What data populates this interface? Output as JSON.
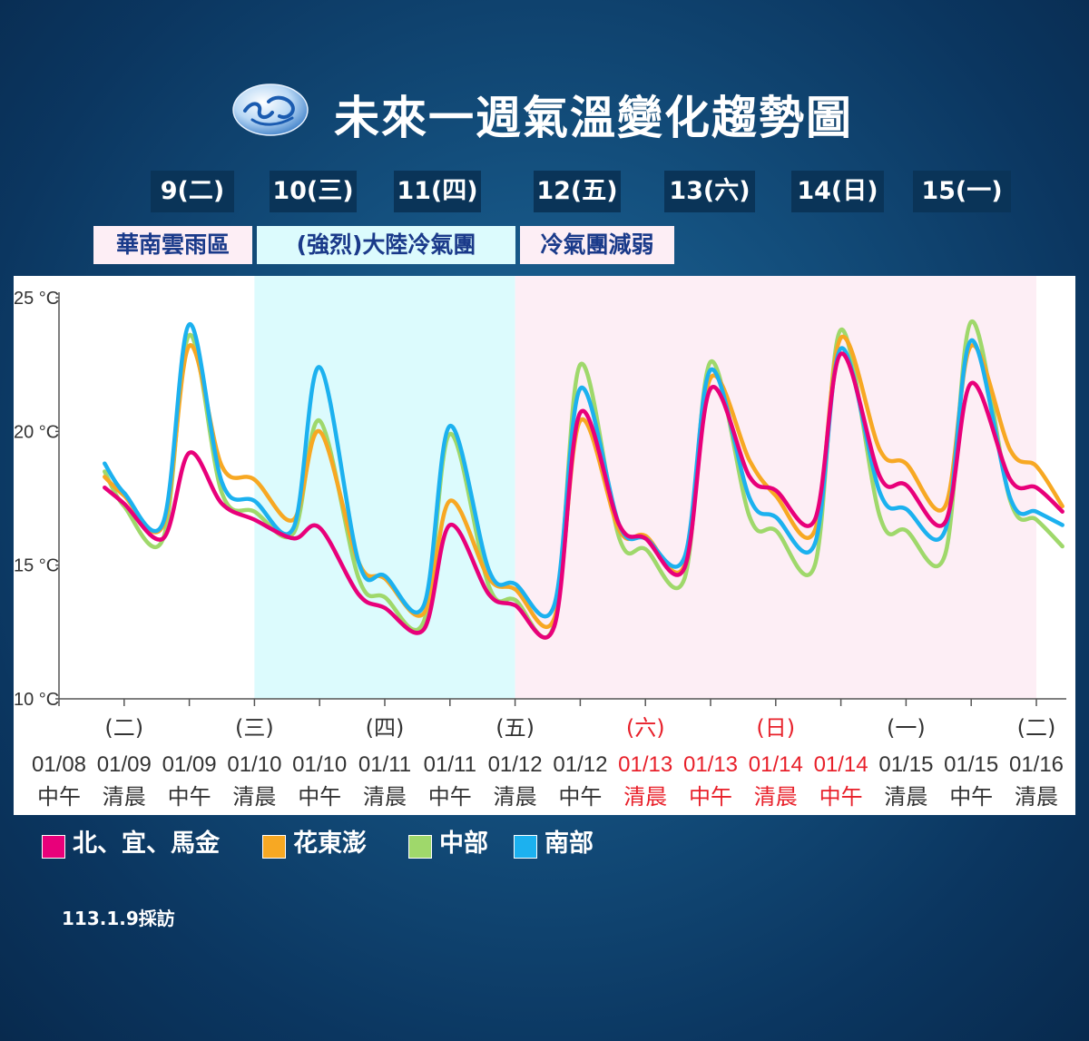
{
  "title": "未來一週氣溫變化趨勢圖",
  "days": [
    "9(二)",
    "10(三)",
    "11(四)",
    "12(五)",
    "13(六)",
    "14(日)",
    "15(一)"
  ],
  "periods": [
    "華南雲雨區",
    "(強烈)大陸冷氣團",
    "冷氣團減弱"
  ],
  "note": "113.1.9採訪",
  "colors": {
    "north": "#e8007a",
    "east": "#f7a823",
    "central": "#9fd86b",
    "south": "#1cb1ef",
    "holiday": "#e8202a",
    "band_cyan": "#dcfbfd",
    "band_pink": "#fdeef5"
  },
  "chart_data": {
    "type": "line",
    "title": "",
    "xlabel": "",
    "ylabel": "",
    "ylim": [
      10,
      25
    ],
    "y_ticks": [
      "25 °C",
      "20 °C",
      "15 °C",
      "10 °C"
    ],
    "x_ticks": [
      {
        "day": "",
        "date": "01/08",
        "time": "中午",
        "holiday": false
      },
      {
        "day": "(二)",
        "date": "01/09",
        "time": "清晨",
        "holiday": false
      },
      {
        "day": "",
        "date": "01/09",
        "time": "中午",
        "holiday": false
      },
      {
        "day": "(三)",
        "date": "01/10",
        "time": "清晨",
        "holiday": false
      },
      {
        "day": "",
        "date": "01/10",
        "time": "中午",
        "holiday": false
      },
      {
        "day": "(四)",
        "date": "01/11",
        "time": "清晨",
        "holiday": false
      },
      {
        "day": "",
        "date": "01/11",
        "time": "中午",
        "holiday": false
      },
      {
        "day": "(五)",
        "date": "01/12",
        "time": "清晨",
        "holiday": false
      },
      {
        "day": "",
        "date": "01/12",
        "time": "中午",
        "holiday": false
      },
      {
        "day": "(六)",
        "date": "01/13",
        "time": "清晨",
        "holiday": true
      },
      {
        "day": "",
        "date": "01/13",
        "time": "中午",
        "holiday": true
      },
      {
        "day": "(日)",
        "date": "01/14",
        "time": "清晨",
        "holiday": true
      },
      {
        "day": "",
        "date": "01/14",
        "time": "中午",
        "holiday": true
      },
      {
        "day": "(一)",
        "date": "01/15",
        "time": "清晨",
        "holiday": false
      },
      {
        "day": "",
        "date": "01/15",
        "time": "中午",
        "holiday": false
      },
      {
        "day": "(二)",
        "date": "01/16",
        "time": "清晨",
        "holiday": false
      }
    ],
    "bands": [
      {
        "from": 3,
        "to": 7,
        "color": "band_cyan"
      },
      {
        "from": 7,
        "to": 15,
        "color": "band_pink"
      }
    ],
    "x": [
      0.7,
      1.0,
      1.6,
      2.0,
      2.5,
      3.0,
      3.6,
      4.0,
      4.6,
      5.0,
      5.6,
      6.0,
      6.6,
      7.0,
      7.6,
      8.0,
      8.6,
      9.0,
      9.6,
      10.0,
      10.6,
      11.0,
      11.6,
      12.0,
      12.6,
      13.0,
      13.6,
      14.0,
      14.6,
      15.0,
      15.4
    ],
    "series": [
      {
        "name": "北、宜、馬金",
        "color": "north",
        "values": [
          17.9,
          17.3,
          16.0,
          19.2,
          17.3,
          16.7,
          16.0,
          16.4,
          13.9,
          13.4,
          12.6,
          16.5,
          13.9,
          13.5,
          12.7,
          20.7,
          16.5,
          16.0,
          14.9,
          21.6,
          18.3,
          17.8,
          16.7,
          22.9,
          18.3,
          18.0,
          16.6,
          21.8,
          18.2,
          17.9,
          17.0
        ]
      },
      {
        "name": "花東澎",
        "color": "east",
        "values": [
          18.3,
          17.6,
          16.5,
          23.2,
          18.7,
          18.2,
          16.7,
          20.0,
          15.1,
          14.5,
          13.2,
          17.4,
          14.5,
          14.1,
          13.0,
          20.4,
          16.3,
          16.1,
          15.0,
          22.0,
          18.9,
          17.6,
          16.3,
          23.5,
          19.3,
          18.8,
          17.2,
          23.2,
          19.3,
          18.7,
          17.2
        ]
      },
      {
        "name": "中部",
        "color": "central",
        "values": [
          18.5,
          17.2,
          16.0,
          23.6,
          17.7,
          17.0,
          16.2,
          20.4,
          14.5,
          13.8,
          12.9,
          19.9,
          14.2,
          13.7,
          12.8,
          22.5,
          16.0,
          15.6,
          14.5,
          22.6,
          16.8,
          16.3,
          15.0,
          23.8,
          16.8,
          16.3,
          15.4,
          24.1,
          17.4,
          16.7,
          15.7
        ]
      },
      {
        "name": "南部",
        "color": "south",
        "values": [
          18.8,
          17.7,
          16.6,
          24.0,
          18.1,
          17.4,
          16.4,
          22.4,
          15.1,
          14.6,
          13.5,
          20.2,
          14.8,
          14.3,
          13.5,
          21.6,
          16.5,
          16.0,
          15.3,
          22.3,
          17.5,
          16.8,
          15.8,
          23.1,
          17.7,
          17.1,
          16.3,
          23.4,
          17.5,
          17.0,
          16.5
        ]
      }
    ],
    "legend": "bottom"
  }
}
